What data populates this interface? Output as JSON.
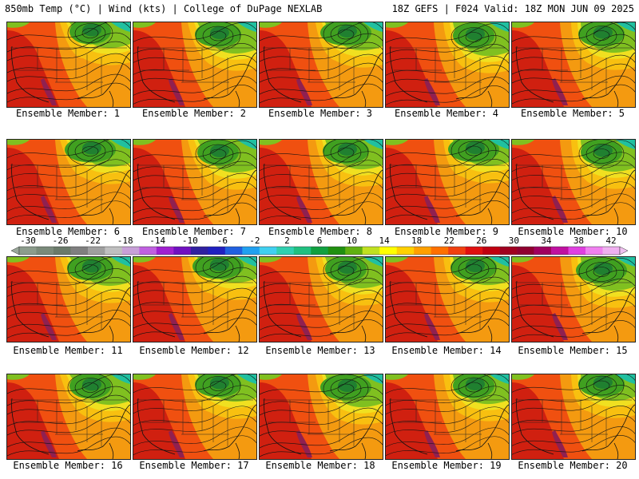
{
  "header": {
    "left": "850mb Temp (°C) | Wind (kts) | College of DuPage NEXLAB",
    "right": "18Z GEFS | F024 Valid: 18Z MON JUN 09 2025"
  },
  "panels": [
    {
      "label": "Ensemble Member: 1"
    },
    {
      "label": "Ensemble Member: 2"
    },
    {
      "label": "Ensemble Member: 3"
    },
    {
      "label": "Ensemble Member: 4"
    },
    {
      "label": "Ensemble Member: 5"
    },
    {
      "label": "Ensemble Member: 6"
    },
    {
      "label": "Ensemble Member: 7"
    },
    {
      "label": "Ensemble Member: 8"
    },
    {
      "label": "Ensemble Member: 9"
    },
    {
      "label": "Ensemble Member: 10"
    },
    {
      "label": "Ensemble Member: 11"
    },
    {
      "label": "Ensemble Member: 12"
    },
    {
      "label": "Ensemble Member: 13"
    },
    {
      "label": "Ensemble Member: 14"
    },
    {
      "label": "Ensemble Member: 15"
    },
    {
      "label": "Ensemble Member: 16"
    },
    {
      "label": "Ensemble Member: 17"
    },
    {
      "label": "Ensemble Member: 18"
    },
    {
      "label": "Ensemble Member: 19"
    },
    {
      "label": "Ensemble Member: 20"
    }
  ],
  "colorbar": {
    "tick_labels": [
      "-30",
      "-26",
      "-22",
      "-18",
      "-14",
      "-10",
      "-6",
      "-2",
      "2",
      "6",
      "10",
      "14",
      "18",
      "22",
      "26",
      "30",
      "34",
      "38",
      "42"
    ],
    "colors": [
      "#8c9c8c",
      "#7a8a7a",
      "#6a7a6a",
      "#7f7f7f",
      "#9f9f9f",
      "#bfbfbf",
      "#c8a0d8",
      "#c060e0",
      "#a020d0",
      "#7010c0",
      "#3020a0",
      "#2020c0",
      "#2060e0",
      "#20a0f0",
      "#40d0f0",
      "#30d0b0",
      "#20c080",
      "#10a040",
      "#209010",
      "#60b010",
      "#c0e020",
      "#ffff00",
      "#ffd000",
      "#ffa000",
      "#ff7000",
      "#f04010",
      "#e01010",
      "#c00010",
      "#a00020",
      "#900030",
      "#a00060",
      "#c010a0",
      "#e040e0",
      "#f080f0",
      "#f0b0f0"
    ],
    "over_color": "#f0c0f0",
    "under_color": "#9aa89a"
  },
  "map_colors": {
    "hot": "#d02010",
    "warm": "#f05010",
    "orange": "#f49a10",
    "yellow_orange": "#f8c010",
    "yellow": "#f0e020",
    "green_light": "#80c020",
    "green": "#40a020",
    "green_dark": "#208030",
    "teal": "#20c0a0",
    "magenta": "#902050"
  }
}
